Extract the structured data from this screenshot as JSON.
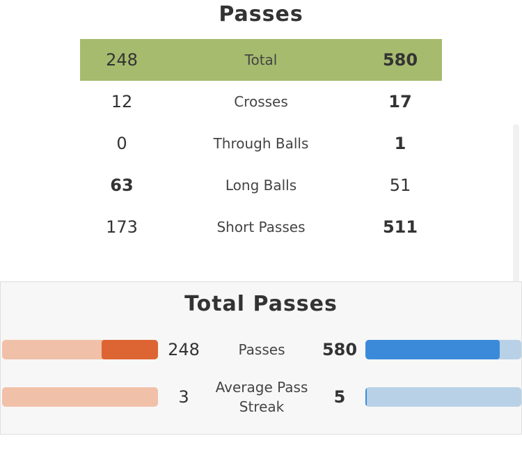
{
  "page_title": "Passes",
  "stats": {
    "rows": [
      {
        "label": "Total",
        "left": "248",
        "right": "580",
        "highlight": true
      },
      {
        "label": "Crosses",
        "left": "12",
        "right": "17"
      },
      {
        "label": "Through Balls",
        "left": "0",
        "right": "1"
      },
      {
        "label": "Long Balls",
        "left": "63",
        "right": "51"
      },
      {
        "label": "Short Passes",
        "left": "173",
        "right": "511"
      }
    ]
  },
  "panel": {
    "title": "Total Passes",
    "bars": [
      {
        "label": "Passes",
        "left": "248",
        "right": "580",
        "left_fraction": 0.36,
        "right_fraction": 0.86
      },
      {
        "label": "Average Pass Streak",
        "left": "3",
        "right": "5",
        "left_fraction": 0.0,
        "right_fraction": 0.01
      }
    ]
  },
  "colors": {
    "highlight_row": "#a6bb6e",
    "home_fill": "#dd6533",
    "home_track": "#f0c1a8",
    "away_fill": "#3b8ad9",
    "away_track": "#b8d1e6"
  }
}
